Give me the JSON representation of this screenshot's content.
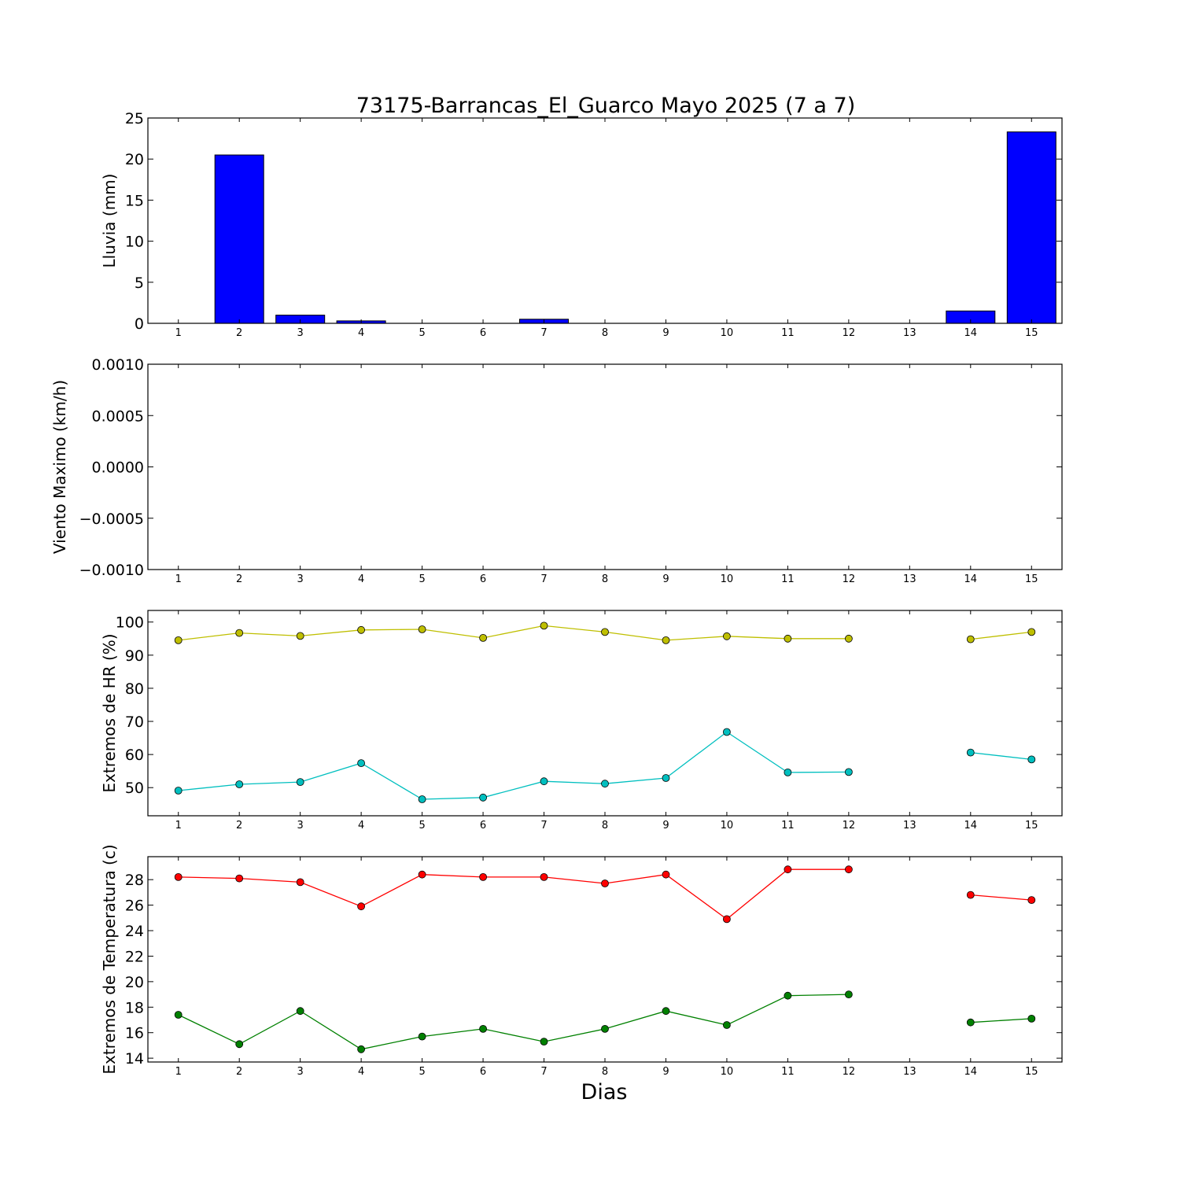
{
  "chart_data": [
    {
      "type": "bar",
      "title": "73175-Barrancas_El_Guarco Mayo 2025  (7 a 7)",
      "ylabel": "Lluvia (mm)",
      "xlabel": "",
      "x": [
        1,
        2,
        3,
        4,
        5,
        6,
        7,
        8,
        9,
        10,
        11,
        12,
        13,
        14,
        15
      ],
      "values": [
        0,
        20.5,
        1.0,
        0.3,
        0,
        0,
        0.5,
        0,
        0,
        0,
        0,
        0,
        null,
        1.5,
        23.3
      ],
      "ylim": [
        0,
        25
      ],
      "xlim": [
        0.5,
        15.5
      ],
      "yticks": [
        0,
        5,
        10,
        15,
        20,
        25
      ],
      "color": "#0000ff"
    },
    {
      "type": "line",
      "ylabel": "Viento Maximo (km/h)",
      "x": [
        1,
        2,
        3,
        4,
        5,
        6,
        7,
        8,
        9,
        10,
        11,
        12,
        13,
        14,
        15
      ],
      "series": [],
      "ylim": [
        -0.001,
        0.001
      ],
      "xlim": [
        0.5,
        15.5
      ],
      "yticks": [
        -0.001,
        -0.0005,
        0.0,
        0.0005,
        0.001
      ],
      "yticklabels": [
        "−0.0010",
        "−0.0005",
        "0.0000",
        "0.0005",
        "0.0010"
      ]
    },
    {
      "type": "line",
      "ylabel": "Extremos de HR (%)",
      "x": [
        1,
        2,
        3,
        4,
        5,
        6,
        7,
        8,
        9,
        10,
        11,
        12,
        13,
        14,
        15
      ],
      "series": [
        {
          "color": "#bfbf00",
          "values": [
            94.5,
            96.7,
            95.8,
            97.6,
            97.8,
            95.2,
            98.9,
            97.0,
            94.5,
            95.7,
            95.0,
            95.0,
            null,
            94.8,
            97.0
          ]
        },
        {
          "color": "#00bfbf",
          "values": [
            49.1,
            51.0,
            51.7,
            57.4,
            46.5,
            47.0,
            51.9,
            51.2,
            52.9,
            66.8,
            54.6,
            54.7,
            null,
            60.6,
            58.5
          ]
        }
      ],
      "ylim": [
        41.5,
        103.5
      ],
      "xlim": [
        0.5,
        15.5
      ],
      "yticks": [
        50,
        60,
        70,
        80,
        90,
        100
      ]
    },
    {
      "type": "line",
      "ylabel": "Extremos de Temperatura (c)",
      "xlabel": "Dias",
      "x": [
        1,
        2,
        3,
        4,
        5,
        6,
        7,
        8,
        9,
        10,
        11,
        12,
        13,
        14,
        15
      ],
      "series": [
        {
          "color": "#ff0000",
          "values": [
            28.2,
            28.1,
            27.8,
            25.9,
            28.4,
            28.2,
            28.2,
            27.7,
            28.4,
            24.9,
            28.8,
            28.8,
            null,
            26.8,
            26.4
          ]
        },
        {
          "color": "#008000",
          "values": [
            17.4,
            15.1,
            17.7,
            14.7,
            15.7,
            16.3,
            15.3,
            16.3,
            17.7,
            16.6,
            18.9,
            19.0,
            null,
            16.8,
            17.1
          ]
        }
      ],
      "ylim": [
        13.7,
        29.8
      ],
      "xlim": [
        0.5,
        15.5
      ],
      "yticks": [
        14,
        16,
        18,
        20,
        22,
        24,
        26,
        28
      ]
    }
  ]
}
